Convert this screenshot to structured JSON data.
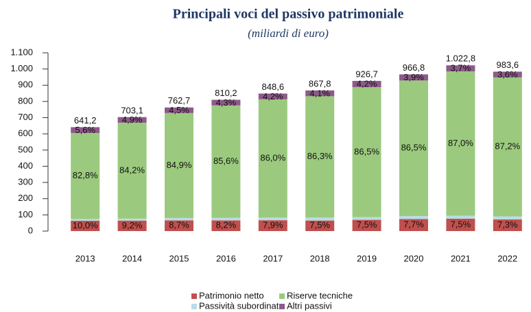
{
  "chart_data": {
    "type": "stacked_bar",
    "title": "Principali voci del passivo patrimoniale",
    "subtitle": "(miliardi di euro)",
    "categories": [
      "2013",
      "2014",
      "2015",
      "2016",
      "2017",
      "2018",
      "2019",
      "2020",
      "2021",
      "2022"
    ],
    "series": [
      {
        "name": "Patrimonio netto",
        "color": "#c0504d",
        "values": [
          64.1,
          64.7,
          66.4,
          66.4,
          67.0,
          65.1,
          69.5,
          74.4,
          76.7,
          71.8
        ],
        "value_labels": [
          "10,0%",
          "9,2%",
          "8,7%",
          "8,2%",
          "7,9%",
          "7,5%",
          "7,5%",
          "7,7%",
          "7,5%",
          "7,3%"
        ]
      },
      {
        "name": "Passività subordinate",
        "color": "#b7dde8",
        "values": [
          10.3,
          12.0,
          14.5,
          15.4,
          16.1,
          18.2,
          16.7,
          18.4,
          18.4,
          18.7
        ]
      },
      {
        "name": "Riserve tecniche",
        "color": "#9bca7e",
        "values": [
          530.9,
          592.0,
          647.5,
          693.5,
          729.8,
          748.9,
          801.6,
          836.3,
          889.8,
          857.7
        ],
        "value_labels": [
          "82,8%",
          "84,2%",
          "84,9%",
          "85,6%",
          "86,0%",
          "86,3%",
          "86,5%",
          "86,5%",
          "87,0%",
          "87,2%"
        ]
      },
      {
        "name": "Altri passivi",
        "color": "#8e5a8a",
        "values": [
          35.9,
          34.5,
          34.3,
          34.8,
          35.6,
          35.6,
          38.9,
          37.7,
          37.8,
          35.4
        ],
        "value_labels": [
          "5,6%",
          "4,9%",
          "4,5%",
          "4,3%",
          "4,2%",
          "4,1%",
          "4,2%",
          "3,9%",
          "3,7%",
          "3,6%"
        ]
      }
    ],
    "totals": [
      641.2,
      703.1,
      762.7,
      810.2,
      848.6,
      867.8,
      926.7,
      966.8,
      1022.8,
      983.6
    ],
    "total_labels": [
      "641,2",
      "703,1",
      "762,7",
      "810,2",
      "848,6",
      "867,8",
      "926,7",
      "966,8",
      "1.022,8",
      "983,6"
    ],
    "ylim": [
      0,
      1100
    ],
    "yticks": [
      0,
      100,
      200,
      300,
      400,
      500,
      600,
      700,
      800,
      900,
      {
        "value": 1000,
        "label": "1.000"
      },
      {
        "value": 1100,
        "label": "1.100"
      }
    ],
    "grid": false
  }
}
